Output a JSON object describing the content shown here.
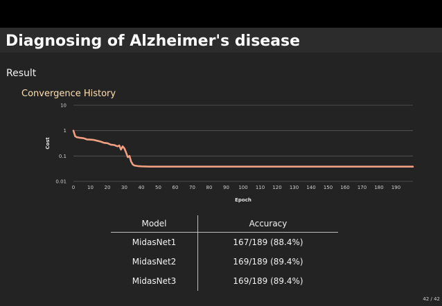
{
  "slide": {
    "title": "Diagnosing of Alzheimer's disease",
    "section": "Result",
    "page": "42 / 42"
  },
  "chart_data": {
    "type": "line",
    "title": "Convergence History",
    "xlabel": "Epoch",
    "ylabel": "Cost",
    "yscale": "log",
    "xlim": [
      0,
      200
    ],
    "ylim": [
      0.01,
      10
    ],
    "xticks": [
      "0",
      "10",
      "20",
      "30",
      "40",
      "50",
      "60",
      "70",
      "80",
      "90",
      "100",
      "110",
      "120",
      "130",
      "140",
      "150",
      "160",
      "170",
      "180",
      "190"
    ],
    "yticks": [
      "10",
      "1",
      "0.1",
      "0.01"
    ],
    "grid": "horizontal",
    "line_color": "#f0a080",
    "series": [
      {
        "x": [
          0,
          1,
          2,
          4,
          6,
          8,
          10,
          12,
          14,
          16,
          18,
          20,
          22,
          24,
          26,
          27,
          28,
          29,
          30,
          31,
          32,
          33,
          34,
          35,
          36,
          38,
          40,
          45,
          50,
          60,
          80,
          100,
          150,
          200
        ],
        "values": [
          1.0,
          0.6,
          0.55,
          0.52,
          0.5,
          0.45,
          0.44,
          0.43,
          0.4,
          0.37,
          0.33,
          0.32,
          0.28,
          0.27,
          0.24,
          0.26,
          0.18,
          0.24,
          0.2,
          0.14,
          0.09,
          0.1,
          0.06,
          0.046,
          0.042,
          0.04,
          0.039,
          0.038,
          0.038,
          0.038,
          0.038,
          0.038,
          0.038,
          0.038
        ]
      }
    ]
  },
  "table": {
    "headers": [
      "Model",
      "Accuracy"
    ],
    "rows": [
      [
        "MidasNet1",
        "167/189 (88.4%)"
      ],
      [
        "MidasNet2",
        "169/189 (89.4%)"
      ],
      [
        "MidasNet3",
        "169/189 (89.4%)"
      ]
    ]
  }
}
